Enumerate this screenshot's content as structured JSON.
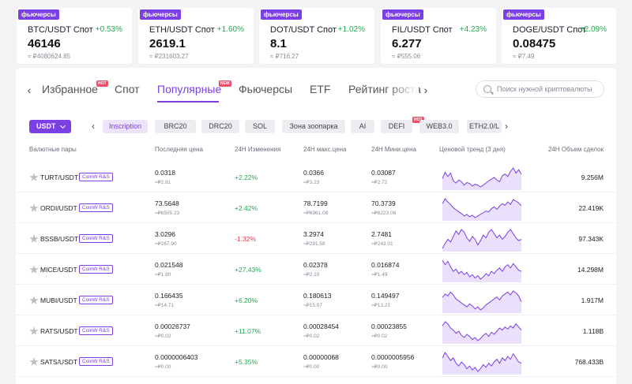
{
  "tickers": [
    {
      "badge": "фьючерсы",
      "pair": "BTC/USDT Спот",
      "change": "+0.53%",
      "price": "46146",
      "sub": "≈ ₽4080624.85"
    },
    {
      "badge": "фьючерсы",
      "pair": "ETH/USDT Спот",
      "change": "+1.60%",
      "price": "2619.1",
      "sub": "≈ ₽231603.27"
    },
    {
      "badge": "фьючерсы",
      "pair": "DOT/USDT Спот",
      "change": "+1.02%",
      "price": "8.1",
      "sub": "≈ ₽716.27"
    },
    {
      "badge": "фьючерсы",
      "pair": "FIL/USDT Спот",
      "change": "+4.23%",
      "price": "6.277",
      "sub": "≈ ₽555.06"
    },
    {
      "badge": "фьючерсы",
      "pair": "DOGE/USDT Спот",
      "change": "+2.09%",
      "price": "0.08475",
      "sub": "≈ ₽7.49"
    }
  ],
  "tabs": {
    "items": [
      "Избранное",
      "Спот",
      "Популярные",
      "Фьючерсы",
      "ETF",
      "Рейтинг роста"
    ],
    "active_index": 2,
    "tag_hot": "HOT",
    "tag_new": "NEW",
    "prev_icon": "‹",
    "next_icon": "›"
  },
  "search": {
    "placeholder": "Поиск нужной криптовалюты"
  },
  "filters": {
    "quote": "USDT",
    "chips": [
      "Inscription",
      "BRC20",
      "DRC20",
      "SOL",
      "Зона зоопарка",
      "AI",
      "DEFI",
      "WEB3.0",
      "ETH2.0/L"
    ],
    "active_index": 0,
    "defi_tag": "HOT",
    "prev_icon": "‹",
    "next_icon": "›"
  },
  "table": {
    "headers": {
      "pair": "Валютные пары",
      "last": "Последняя цена",
      "change": "24H Изменения",
      "high": "24H макс.цена",
      "low": "24H Мини.цена",
      "trend": "Ценовой тренд (3 дня)",
      "volume": "24H Объем сделок"
    },
    "rows": [
      {
        "pair": "TURT/USDT",
        "tag": "CoinW R&S",
        "last": "0.0318",
        "last_sub": "≈₽2.81",
        "change": "+2.22%",
        "dir": "up",
        "high": "0.0366",
        "high_sub": "≈₽3.23",
        "low": "0.03087",
        "low_sub": "≈₽2.72",
        "volume": "9.256M",
        "trend": [
          45,
          60,
          50,
          58,
          40,
          35,
          42,
          38,
          30,
          36,
          34,
          28,
          32,
          30,
          26,
          30,
          35,
          40,
          44,
          48,
          42,
          38,
          52,
          56,
          50,
          62,
          70,
          58,
          66,
          55
        ]
      },
      {
        "pair": "ORDI/USDT",
        "tag": "CoinW R&S",
        "last": "73.5648",
        "last_sub": "≈₽6505.23",
        "change": "+2.42%",
        "dir": "up",
        "high": "78.7199",
        "high_sub": "≈₽6961.08",
        "low": "70.3739",
        "low_sub": "≈₽6223.06",
        "volume": "22.419K",
        "trend": [
          60,
          72,
          64,
          58,
          50,
          45,
          40,
          36,
          30,
          34,
          28,
          32,
          26,
          30,
          34,
          38,
          42,
          40,
          48,
          52,
          46,
          54,
          60,
          56,
          64,
          58,
          70,
          66,
          62,
          55
        ]
      },
      {
        "pair": "BSSB/USDT",
        "tag": "CoinW R&S",
        "last": "3.0296",
        "last_sub": "≈₽267.90",
        "change": "-1.32%",
        "dir": "down",
        "high": "3.2974",
        "high_sub": "≈₽291.58",
        "low": "2.7481",
        "low_sub": "≈₽243.01",
        "volume": "97.343K",
        "trend": [
          35,
          42,
          48,
          44,
          52,
          60,
          55,
          62,
          58,
          50,
          45,
          52,
          48,
          40,
          46,
          54,
          50,
          58,
          62,
          56,
          50,
          54,
          48,
          52,
          58,
          62,
          56,
          50,
          46,
          48
        ]
      },
      {
        "pair": "MICE/USDT",
        "tag": "CoinW R&S",
        "last": "0.021548",
        "last_sub": "≈₽1.90",
        "change": "+27.43%",
        "dir": "up",
        "high": "0.02378",
        "high_sub": "≈₽2.10",
        "low": "0.016874",
        "low_sub": "≈₽1.49",
        "volume": "14.298M",
        "trend": [
          70,
          62,
          68,
          58,
          50,
          54,
          46,
          50,
          44,
          48,
          40,
          44,
          38,
          42,
          36,
          40,
          46,
          42,
          50,
          46,
          52,
          56,
          50,
          58,
          62,
          56,
          64,
          58,
          52,
          50
        ]
      },
      {
        "pair": "MUBI/USDT",
        "tag": "CoinW R&S",
        "last": "0.166435",
        "last_sub": "≈₽14.71",
        "change": "+6.20%",
        "dir": "up",
        "high": "0.180613",
        "high_sub": "≈₽15.97",
        "low": "0.149497",
        "low_sub": "≈₽13.21",
        "volume": "1.917M",
        "trend": [
          55,
          62,
          58,
          66,
          60,
          52,
          48,
          44,
          40,
          36,
          42,
          38,
          32,
          36,
          30,
          34,
          40,
          44,
          48,
          52,
          56,
          50,
          58,
          62,
          66,
          60,
          68,
          64,
          58,
          46
        ]
      },
      {
        "pair": "RATS/USDT",
        "tag": "CoinW R&S",
        "last": "0.00026737",
        "last_sub": "≈₽0.02",
        "change": "+11.07%",
        "dir": "up",
        "high": "0.00028454",
        "high_sub": "≈₽0.02",
        "low": "0.00023855",
        "low_sub": "≈₽0.02",
        "volume": "1.118B",
        "trend": [
          62,
          70,
          66,
          58,
          54,
          48,
          52,
          44,
          40,
          46,
          42,
          36,
          40,
          34,
          38,
          44,
          48,
          42,
          50,
          46,
          52,
          58,
          54,
          60,
          56,
          62,
          58,
          66,
          60,
          54
        ]
      },
      {
        "pair": "SATS/USDT",
        "tag": "CoinW R&S",
        "last": "0.0000006403",
        "last_sub": "≈₽0.00",
        "change": "+5.35%",
        "dir": "up",
        "high": "0.00000068",
        "high_sub": "≈₽0.00",
        "low": "0.0000005956",
        "low_sub": "≈₽0.00",
        "volume": "768.433B",
        "trend": [
          58,
          66,
          60,
          54,
          58,
          50,
          46,
          52,
          48,
          42,
          46,
          40,
          44,
          38,
          42,
          48,
          44,
          50,
          46,
          52,
          56,
          50,
          58,
          54,
          60,
          56,
          64,
          58,
          52,
          50
        ]
      }
    ]
  },
  "colors": {
    "accent": "#7b3fe4",
    "up": "#25a750",
    "down": "#e5344a"
  }
}
